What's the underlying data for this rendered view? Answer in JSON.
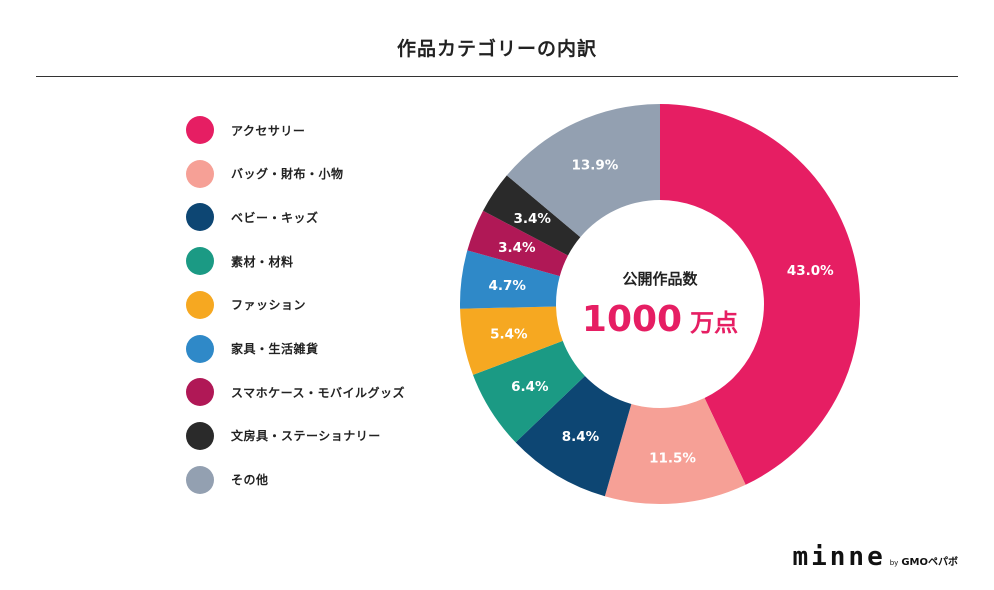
{
  "colors": {
    "accent": "#e61e63",
    "rule": "#333333"
  },
  "chart_data": {
    "type": "pie",
    "title": "作品カテゴリーの内訳",
    "center_label": "公開作品数",
    "center_value": "1000",
    "center_unit": "万点",
    "categories": [
      "アクセサリー",
      "バッグ・財布・小物",
      "ベビー・キッズ",
      "素材・材料",
      "ファッション",
      "家具・生活雑貨",
      "スマホケース・モバイルグッズ",
      "文房具・ステーショナリー",
      "その他"
    ],
    "values": [
      43.0,
      11.5,
      8.4,
      6.4,
      5.4,
      4.7,
      3.4,
      3.4,
      13.9
    ],
    "value_labels": [
      "43.0%",
      "11.5%",
      "8.4%",
      "6.4%",
      "5.4%",
      "4.7%",
      "3.4%",
      "3.4%",
      "13.9%"
    ],
    "colors": [
      "#e61e63",
      "#f6a096",
      "#0d4673",
      "#1b9a84",
      "#f6a821",
      "#2f89c8",
      "#b01856",
      "#2a2a2a",
      "#93a0b1"
    ],
    "legend_position": "left"
  },
  "brand": {
    "name": "minne",
    "by": "by",
    "company": "GMOペパボ"
  }
}
